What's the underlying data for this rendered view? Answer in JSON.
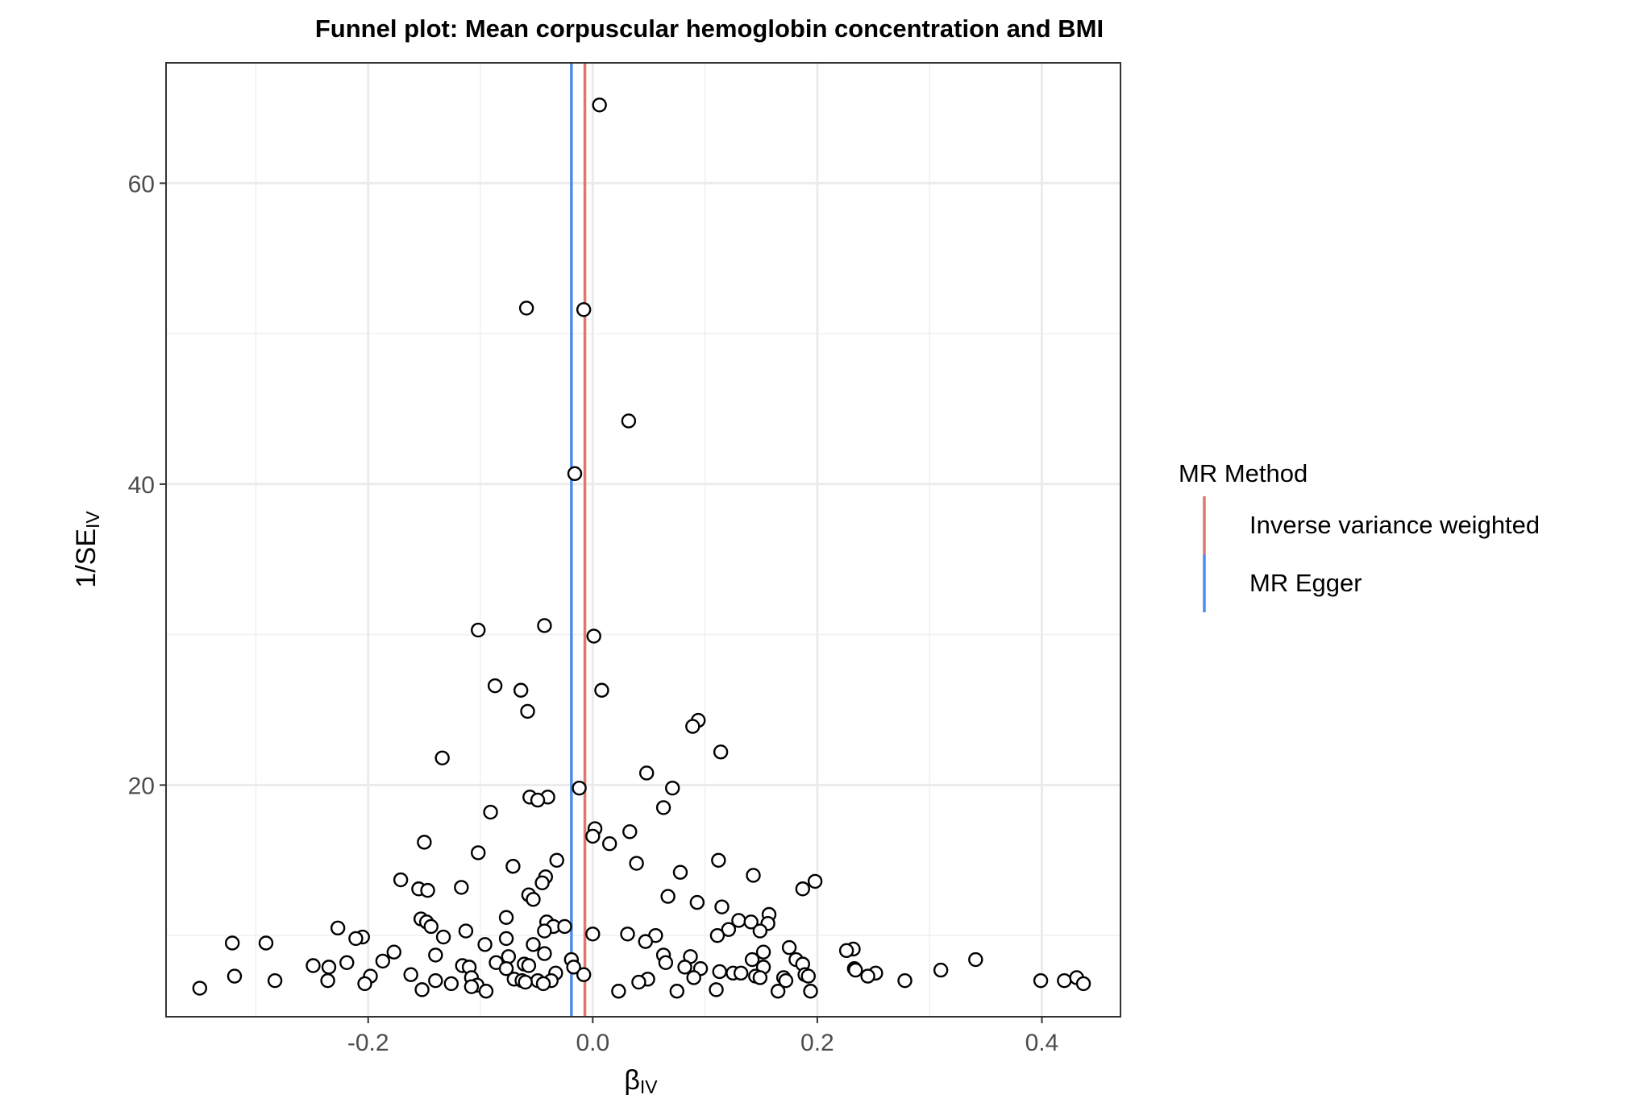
{
  "chart_data": {
    "type": "scatter",
    "title": "Funnel plot: Mean corpuscular hemoglobin concentration and BMI",
    "xlabel": {
      "main": "β",
      "sub": "IV"
    },
    "ylabel": {
      "main": "1/SE",
      "sub": "IV"
    },
    "xlim": [
      -0.38,
      0.47
    ],
    "ylim": [
      4.6,
      68
    ],
    "x_ticks": [
      -0.2,
      0.0,
      0.2,
      0.4
    ],
    "x_tick_labels": [
      "-0.2",
      "0.0",
      "0.2",
      "0.4"
    ],
    "y_ticks": [
      20,
      40,
      60
    ],
    "y_tick_labels": [
      "20",
      "40",
      "60"
    ],
    "grid": true,
    "legend": {
      "title": "MR Method",
      "position": "right",
      "entries": [
        {
          "label": "Inverse variance weighted",
          "color": "#E0776A"
        },
        {
          "label": "MR Egger",
          "color": "#4D8DE8"
        }
      ]
    },
    "vertical_lines": [
      {
        "method": "Inverse variance weighted",
        "x": -0.007,
        "color": "#E0776A"
      },
      {
        "method": "MR Egger",
        "x": -0.019,
        "color": "#4D8DE8"
      }
    ],
    "points": [
      [
        0.006,
        65.2
      ],
      [
        -0.059,
        51.7
      ],
      [
        -0.008,
        51.6
      ],
      [
        0.032,
        44.2
      ],
      [
        -0.016,
        40.7
      ],
      [
        -0.102,
        30.3
      ],
      [
        -0.043,
        30.6
      ],
      [
        0.001,
        29.9
      ],
      [
        -0.087,
        26.6
      ],
      [
        -0.064,
        26.3
      ],
      [
        0.008,
        26.3
      ],
      [
        -0.058,
        24.9
      ],
      [
        0.094,
        24.3
      ],
      [
        0.089,
        23.9
      ],
      [
        0.114,
        22.2
      ],
      [
        -0.134,
        21.8
      ],
      [
        0.048,
        20.8
      ],
      [
        -0.012,
        19.8
      ],
      [
        0.071,
        19.8
      ],
      [
        -0.056,
        19.2
      ],
      [
        -0.04,
        19.2
      ],
      [
        -0.049,
        19.0
      ],
      [
        0.063,
        18.5
      ],
      [
        -0.091,
        18.2
      ],
      [
        0.002,
        17.1
      ],
      [
        0.033,
        16.9
      ],
      [
        0.0,
        16.6
      ],
      [
        0.015,
        16.1
      ],
      [
        -0.15,
        16.2
      ],
      [
        -0.102,
        15.5
      ],
      [
        -0.032,
        15.0
      ],
      [
        0.112,
        15.0
      ],
      [
        0.039,
        14.8
      ],
      [
        -0.071,
        14.6
      ],
      [
        0.078,
        14.2
      ],
      [
        0.143,
        14.0
      ],
      [
        -0.042,
        13.9
      ],
      [
        -0.045,
        13.5
      ],
      [
        -0.171,
        13.7
      ],
      [
        0.198,
        13.6
      ],
      [
        -0.155,
        13.1
      ],
      [
        -0.147,
        13.0
      ],
      [
        -0.117,
        13.2
      ],
      [
        0.187,
        13.1
      ],
      [
        -0.057,
        12.7
      ],
      [
        -0.053,
        12.4
      ],
      [
        0.067,
        12.6
      ],
      [
        0.093,
        12.2
      ],
      [
        0.115,
        11.9
      ],
      [
        0.157,
        11.4
      ],
      [
        -0.077,
        11.2
      ],
      [
        -0.153,
        11.1
      ],
      [
        -0.148,
        10.9
      ],
      [
        -0.041,
        10.9
      ],
      [
        0.13,
        11.0
      ],
      [
        0.141,
        10.9
      ],
      [
        0.156,
        10.8
      ],
      [
        -0.144,
        10.6
      ],
      [
        -0.035,
        10.6
      ],
      [
        -0.025,
        10.6
      ],
      [
        -0.227,
        10.5
      ],
      [
        -0.043,
        10.3
      ],
      [
        0.121,
        10.4
      ],
      [
        0.149,
        10.3
      ],
      [
        -0.113,
        10.3
      ],
      [
        0.0,
        10.1
      ],
      [
        0.031,
        10.1
      ],
      [
        0.111,
        10.0
      ],
      [
        0.056,
        10.0
      ],
      [
        -0.133,
        9.9
      ],
      [
        -0.205,
        9.9
      ],
      [
        -0.211,
        9.8
      ],
      [
        -0.077,
        9.8
      ],
      [
        0.047,
        9.6
      ],
      [
        -0.321,
        9.5
      ],
      [
        -0.291,
        9.5
      ],
      [
        -0.096,
        9.4
      ],
      [
        -0.053,
        9.4
      ],
      [
        0.175,
        9.2
      ],
      [
        0.232,
        9.1
      ],
      [
        0.226,
        9.0
      ],
      [
        -0.177,
        8.9
      ],
      [
        0.152,
        8.9
      ],
      [
        -0.043,
        8.8
      ],
      [
        -0.14,
        8.7
      ],
      [
        -0.075,
        8.6
      ],
      [
        0.063,
        8.7
      ],
      [
        0.087,
        8.6
      ],
      [
        -0.019,
        8.4
      ],
      [
        0.142,
        8.4
      ],
      [
        0.181,
        8.4
      ],
      [
        0.341,
        8.4
      ],
      [
        -0.187,
        8.3
      ],
      [
        -0.086,
        8.2
      ],
      [
        0.065,
        8.2
      ],
      [
        -0.219,
        8.2
      ],
      [
        -0.249,
        8.0
      ],
      [
        -0.116,
        8.0
      ],
      [
        -0.061,
        8.1
      ],
      [
        -0.057,
        8.0
      ],
      [
        0.187,
        8.1
      ],
      [
        -0.235,
        7.9
      ],
      [
        -0.11,
        7.9
      ],
      [
        -0.017,
        7.9
      ],
      [
        0.152,
        7.9
      ],
      [
        0.082,
        7.9
      ],
      [
        0.096,
        7.8
      ],
      [
        0.233,
        7.8
      ],
      [
        -0.077,
        7.8
      ],
      [
        0.234,
        7.7
      ],
      [
        0.31,
        7.7
      ],
      [
        0.113,
        7.6
      ],
      [
        0.125,
        7.5
      ],
      [
        0.132,
        7.5
      ],
      [
        -0.033,
        7.5
      ],
      [
        0.252,
        7.5
      ],
      [
        -0.162,
        7.4
      ],
      [
        -0.008,
        7.4
      ],
      [
        0.189,
        7.4
      ],
      [
        -0.319,
        7.3
      ],
      [
        -0.198,
        7.3
      ],
      [
        0.192,
        7.3
      ],
      [
        0.145,
        7.3
      ],
      [
        0.245,
        7.3
      ],
      [
        0.17,
        7.2
      ],
      [
        -0.108,
        7.2
      ],
      [
        0.149,
        7.2
      ],
      [
        0.09,
        7.2
      ],
      [
        0.049,
        7.1
      ],
      [
        -0.07,
        7.1
      ],
      [
        -0.063,
        7.0
      ],
      [
        0.172,
        7.0
      ],
      [
        -0.236,
        7.0
      ],
      [
        -0.283,
        7.0
      ],
      [
        -0.14,
        7.0
      ],
      [
        -0.049,
        7.0
      ],
      [
        0.278,
        7.0
      ],
      [
        0.399,
        7.0
      ],
      [
        -0.037,
        7.0
      ],
      [
        0.42,
        7.0
      ],
      [
        0.431,
        7.2
      ],
      [
        0.041,
        6.9
      ],
      [
        -0.06,
        6.9
      ],
      [
        -0.203,
        6.8
      ],
      [
        0.437,
        6.8
      ],
      [
        -0.044,
        6.8
      ],
      [
        -0.126,
        6.8
      ],
      [
        -0.103,
        6.7
      ],
      [
        -0.108,
        6.6
      ],
      [
        -0.35,
        6.5
      ],
      [
        -0.152,
        6.4
      ],
      [
        0.11,
        6.4
      ],
      [
        0.165,
        6.3
      ],
      [
        -0.095,
        6.3
      ],
      [
        0.023,
        6.3
      ],
      [
        0.075,
        6.3
      ],
      [
        0.194,
        6.3
      ]
    ]
  }
}
